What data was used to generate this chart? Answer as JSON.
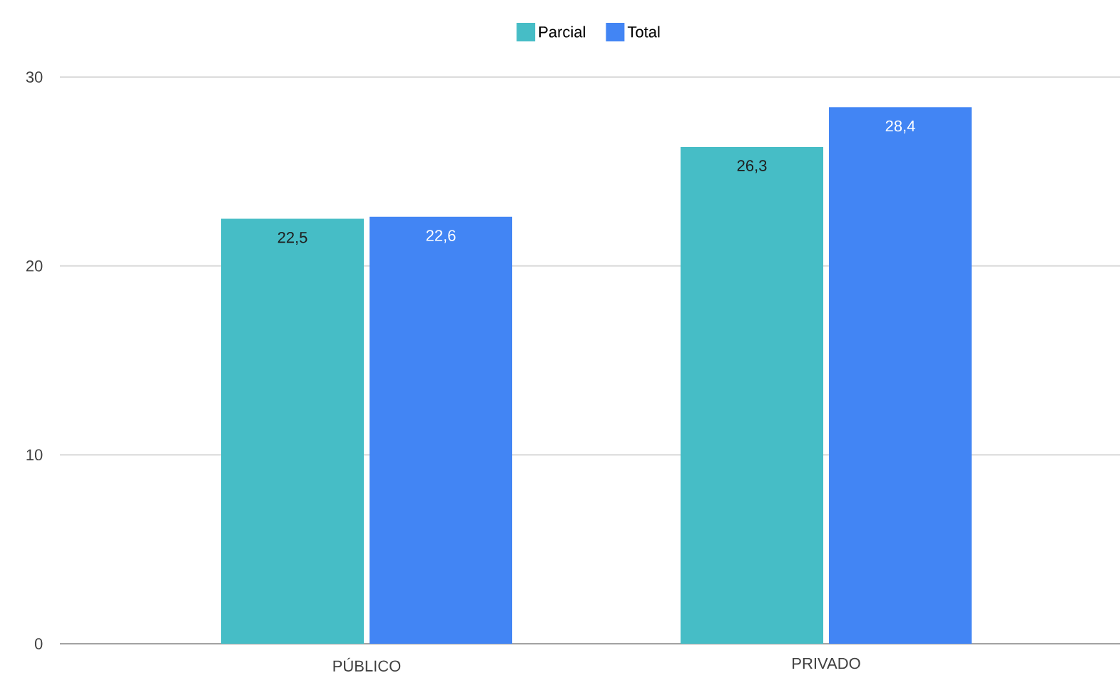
{
  "chart_data": {
    "type": "bar",
    "categories": [
      "PÚBLICO",
      "PRIVADO"
    ],
    "series": [
      {
        "name": "Parcial",
        "color": "#46bdc6",
        "values": [
          22.5,
          26.3
        ],
        "value_labels": [
          "22,5",
          "26,3"
        ]
      },
      {
        "name": "Total",
        "color": "#4285f4",
        "values": [
          22.6,
          28.4
        ],
        "value_labels": [
          "22,6",
          "28,4"
        ]
      }
    ],
    "ylim": [
      0,
      30
    ],
    "yticks": [
      0,
      10,
      20,
      30
    ],
    "grid": "y",
    "legend": "top"
  }
}
